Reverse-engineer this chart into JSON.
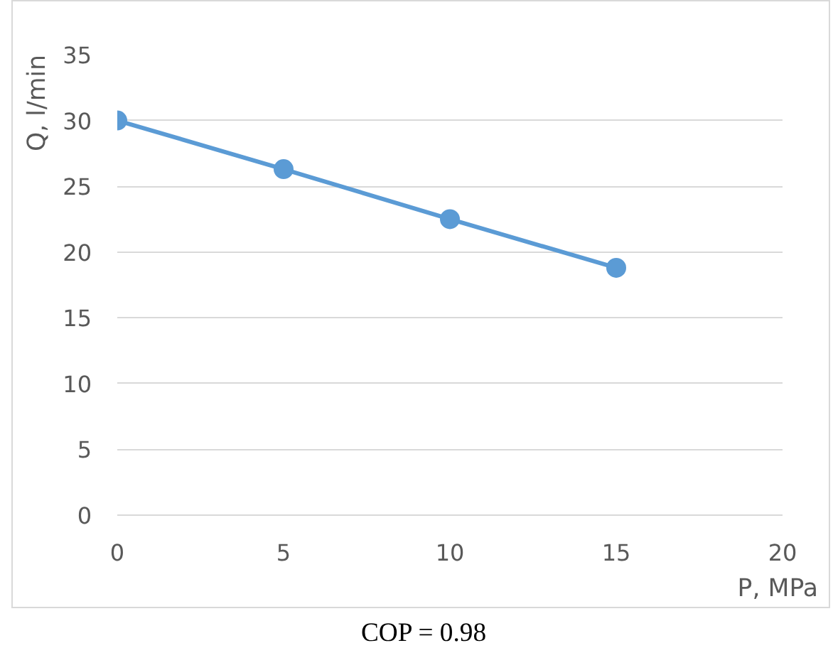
{
  "chart_data": {
    "type": "line",
    "xlabel": "P, MPa",
    "ylabel": "Q, l/min",
    "x": [
      0,
      5,
      10,
      15
    ],
    "series": [
      {
        "color": "#5b9bd5",
        "values": [
          30,
          26.3,
          22.5,
          18.8
        ]
      }
    ],
    "xlim": [
      0,
      20
    ],
    "xticks": [
      0,
      5,
      10,
      15,
      20
    ],
    "ylim": [
      0,
      35
    ],
    "yticks": [
      0,
      5,
      10,
      15,
      20,
      25,
      30,
      35
    ],
    "grid": "y",
    "marker": "circle",
    "line_style": "solid",
    "annotations": [
      "COP = 0.98"
    ]
  }
}
